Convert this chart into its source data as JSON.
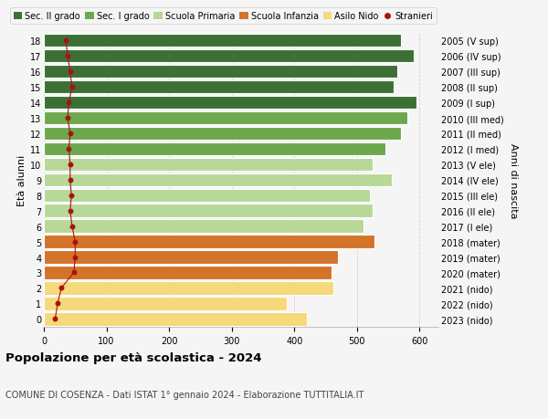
{
  "ages": [
    18,
    17,
    16,
    15,
    14,
    13,
    12,
    11,
    10,
    9,
    8,
    7,
    6,
    5,
    4,
    3,
    2,
    1,
    0
  ],
  "years": [
    "2005 (V sup)",
    "2006 (IV sup)",
    "2007 (III sup)",
    "2008 (II sup)",
    "2009 (I sup)",
    "2010 (III med)",
    "2011 (II med)",
    "2012 (I med)",
    "2013 (V ele)",
    "2014 (IV ele)",
    "2015 (III ele)",
    "2016 (II ele)",
    "2017 (I ele)",
    "2018 (mater)",
    "2019 (mater)",
    "2020 (mater)",
    "2021 (nido)",
    "2022 (nido)",
    "2023 (nido)"
  ],
  "bar_values": [
    570,
    590,
    565,
    558,
    595,
    580,
    570,
    545,
    525,
    555,
    520,
    525,
    510,
    528,
    470,
    460,
    462,
    388,
    420
  ],
  "bar_colors": [
    "#3d7035",
    "#3d7035",
    "#3d7035",
    "#3d7035",
    "#3d7035",
    "#6ea84e",
    "#6ea84e",
    "#6ea84e",
    "#b8d898",
    "#b8d898",
    "#b8d898",
    "#b8d898",
    "#b8d898",
    "#d4732a",
    "#d4732a",
    "#d4732a",
    "#f5d97a",
    "#f5d97a",
    "#f5d97a"
  ],
  "stranieri_values": [
    35,
    38,
    42,
    45,
    40,
    38,
    42,
    40,
    42,
    42,
    44,
    42,
    45,
    50,
    50,
    48,
    28,
    22,
    18
  ],
  "stranieri_color": "#aa1111",
  "legend_labels": [
    "Sec. II grado",
    "Sec. I grado",
    "Scuola Primaria",
    "Scuola Infanzia",
    "Asilo Nido",
    "Stranieri"
  ],
  "legend_colors": [
    "#3d7035",
    "#6ea84e",
    "#b8d898",
    "#d4732a",
    "#f5d97a",
    "#aa1111"
  ],
  "ylabel_left": "Età alunni",
  "ylabel_right": "Anni di nascita",
  "title": "Popolazione per età scolastica - 2024",
  "subtitle": "COMUNE DI COSENZA - Dati ISTAT 1° gennaio 2024 - Elaborazione TUTTITALIA.IT",
  "xlim": [
    0,
    630
  ],
  "xticks": [
    0,
    100,
    200,
    300,
    400,
    500,
    600
  ],
  "bg_color": "#f5f5f5",
  "bar_edgecolor": "#ffffff"
}
